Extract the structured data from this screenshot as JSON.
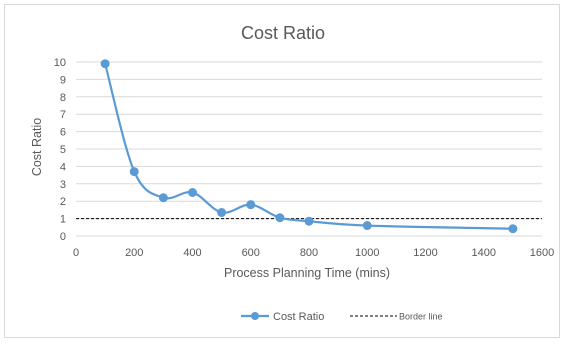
{
  "chart_data": {
    "type": "line",
    "title": "Cost Ratio",
    "xlabel": "Process Planning Time (mins)",
    "ylabel": "Cost Ratio",
    "xlim": [
      0,
      1600
    ],
    "ylim": [
      0,
      10
    ],
    "xticks": [
      "0",
      "200",
      "400",
      "600",
      "800",
      "1000",
      "1200",
      "1400",
      "1600"
    ],
    "yticks": [
      "0",
      "1",
      "2",
      "3",
      "4",
      "5",
      "6",
      "7",
      "8",
      "9",
      "10"
    ],
    "grid": true,
    "legend_position": "bottom",
    "series": [
      {
        "name": "Cost Ratio",
        "color": "#5b9bd5",
        "marker": "circle",
        "smooth": true,
        "x": [
          100,
          200,
          300,
          400,
          500,
          600,
          700,
          800,
          1000,
          1500
        ],
        "y": [
          9.9,
          3.7,
          2.2,
          2.5,
          1.35,
          1.8,
          1.05,
          0.85,
          0.6,
          0.42
        ]
      },
      {
        "name": "Border line",
        "color": "#000000",
        "style": "dashed",
        "y_constant": 1
      }
    ]
  }
}
